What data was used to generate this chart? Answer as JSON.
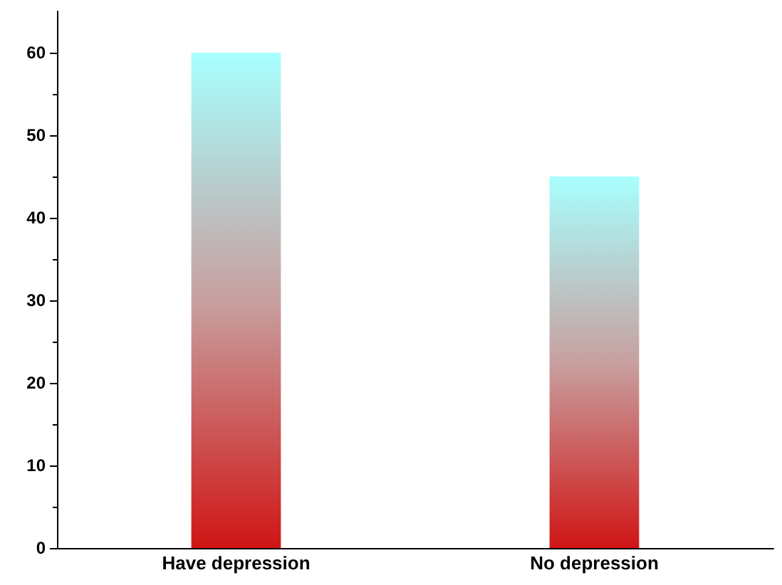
{
  "chart_data": {
    "type": "bar",
    "categories": [
      "Have depression",
      "No depression"
    ],
    "values": [
      60,
      45
    ],
    "color": "#d01515",
    "ylim": [
      0,
      65
    ],
    "yticks": [
      0,
      10,
      20,
      30,
      40,
      50,
      60
    ],
    "grid": false
  }
}
